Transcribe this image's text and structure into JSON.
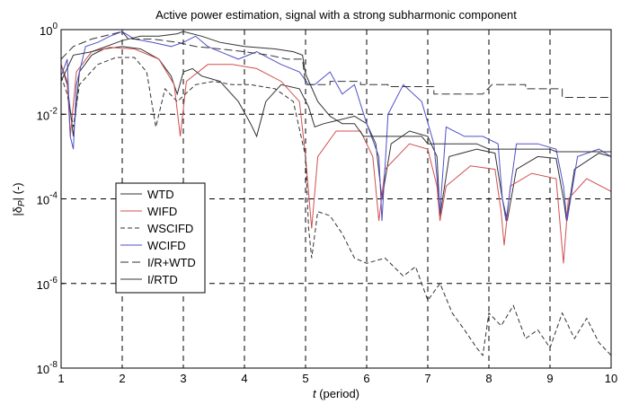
{
  "chart_data": {
    "type": "line",
    "title": "Active power estimation, signal with a strong subharmonic component",
    "xlabel_italic": "t",
    "xlabel_rest": " (period)",
    "ylabel_main": "|δ",
    "ylabel_sub": "P",
    "ylabel_rest": "| (-)",
    "xlim": [
      1,
      10
    ],
    "ylim": [
      1e-08,
      1
    ],
    "yscale": "log",
    "grid": true,
    "x_ticks": [
      "1",
      "2",
      "3",
      "4",
      "5",
      "6",
      "7",
      "8",
      "9",
      "10"
    ],
    "y_ticks": [
      {
        "base": "10",
        "exp": "0",
        "value": 1
      },
      {
        "base": "10",
        "exp": "-2",
        "value": 0.01
      },
      {
        "base": "10",
        "exp": "-4",
        "value": 0.0001
      },
      {
        "base": "10",
        "exp": "-6",
        "value": 1e-06
      },
      {
        "base": "10",
        "exp": "-8",
        "value": 1e-08
      }
    ],
    "legend_position": "left",
    "series": [
      {
        "name": "WTD",
        "color": "#333333",
        "dash": "none",
        "points": [
          [
            1.0,
            0.15
          ],
          [
            1.1,
            0.05
          ],
          [
            1.2,
            0.003
          ],
          [
            1.3,
            0.1
          ],
          [
            1.5,
            0.25
          ],
          [
            1.7,
            0.35
          ],
          [
            2.0,
            0.4
          ],
          [
            2.3,
            0.35
          ],
          [
            2.6,
            0.2
          ],
          [
            2.8,
            0.08
          ],
          [
            2.9,
            0.03
          ],
          [
            3.0,
            0.1
          ],
          [
            3.15,
            0.12
          ],
          [
            3.3,
            0.08
          ],
          [
            3.6,
            0.06
          ],
          [
            3.9,
            0.02
          ],
          [
            4.1,
            0.006
          ],
          [
            4.2,
            0.003
          ],
          [
            4.35,
            0.02
          ],
          [
            4.6,
            0.05
          ],
          [
            4.9,
            0.04
          ],
          [
            5.05,
            0.015
          ],
          [
            5.15,
            0.005
          ],
          [
            5.3,
            0.006
          ],
          [
            5.5,
            0.007
          ],
          [
            5.8,
            0.009
          ],
          [
            6.0,
            0.006
          ],
          [
            6.15,
            0.002
          ],
          [
            6.25,
            0.0001
          ],
          [
            6.4,
            0.002
          ],
          [
            6.7,
            0.004
          ],
          [
            7.0,
            0.003
          ],
          [
            7.15,
            0.001
          ],
          [
            7.2,
            4e-05
          ],
          [
            7.35,
            0.001
          ],
          [
            7.8,
            0.0015
          ],
          [
            8.1,
            0.0012
          ],
          [
            8.22,
            0.0001
          ],
          [
            8.3,
            3e-05
          ],
          [
            8.45,
            0.0005
          ],
          [
            8.8,
            0.001
          ],
          [
            9.1,
            0.0009
          ],
          [
            9.22,
            0.0001
          ],
          [
            9.27,
            3e-05
          ],
          [
            9.4,
            0.0005
          ],
          [
            9.8,
            0.0012
          ],
          [
            10.0,
            0.001
          ]
        ]
      },
      {
        "name": "WIFD",
        "color": "#d05050",
        "dash": "none",
        "points": [
          [
            1.0,
            0.15
          ],
          [
            1.1,
            0.06
          ],
          [
            1.15,
            0.003
          ],
          [
            1.25,
            0.1
          ],
          [
            1.5,
            0.3
          ],
          [
            1.8,
            0.38
          ],
          [
            2.2,
            0.35
          ],
          [
            2.6,
            0.2
          ],
          [
            2.85,
            0.05
          ],
          [
            2.95,
            0.003
          ],
          [
            3.05,
            0.06
          ],
          [
            3.4,
            0.15
          ],
          [
            3.8,
            0.15
          ],
          [
            4.2,
            0.12
          ],
          [
            4.6,
            0.06
          ],
          [
            4.9,
            0.02
          ],
          [
            5.0,
            0.001
          ],
          [
            5.1,
            2e-05
          ],
          [
            5.2,
            0.001
          ],
          [
            5.5,
            0.004
          ],
          [
            5.9,
            0.004
          ],
          [
            6.1,
            0.001
          ],
          [
            6.2,
            3e-05
          ],
          [
            6.3,
            0.0005
          ],
          [
            6.7,
            0.002
          ],
          [
            7.0,
            0.0015
          ],
          [
            7.15,
            0.0002
          ],
          [
            7.2,
            3e-05
          ],
          [
            7.3,
            0.0002
          ],
          [
            7.7,
            0.0006
          ],
          [
            8.1,
            0.0005
          ],
          [
            8.2,
            5e-05
          ],
          [
            8.25,
            8e-06
          ],
          [
            8.35,
            0.0002
          ],
          [
            8.7,
            0.0004
          ],
          [
            9.1,
            0.0003
          ],
          [
            9.22,
            3e-06
          ],
          [
            9.3,
            0.0001
          ],
          [
            9.6,
            0.0003
          ],
          [
            10.0,
            0.00015
          ]
        ]
      },
      {
        "name": "WSCIFD",
        "color": "#333333",
        "dash": "5,3",
        "points": [
          [
            1.0,
            0.08
          ],
          [
            1.1,
            0.03
          ],
          [
            1.2,
            0.005
          ],
          [
            1.3,
            0.05
          ],
          [
            1.6,
            0.15
          ],
          [
            1.9,
            0.22
          ],
          [
            2.2,
            0.22
          ],
          [
            2.4,
            0.1
          ],
          [
            2.55,
            0.005
          ],
          [
            2.6,
            0.01
          ],
          [
            2.7,
            0.04
          ],
          [
            2.9,
            0.02
          ],
          [
            3.2,
            0.05
          ],
          [
            3.5,
            0.06
          ],
          [
            3.8,
            0.05
          ],
          [
            4.1,
            0.05
          ],
          [
            4.5,
            0.04
          ],
          [
            4.8,
            0.02
          ],
          [
            5.0,
            0.001
          ],
          [
            5.05,
            2e-05
          ],
          [
            5.1,
            4e-06
          ],
          [
            5.2,
            5e-05
          ],
          [
            5.4,
            4e-05
          ],
          [
            5.6,
            1.5e-05
          ],
          [
            5.8,
            4e-06
          ],
          [
            6.0,
            3e-06
          ],
          [
            6.3,
            4e-06
          ],
          [
            6.6,
            1.5e-06
          ],
          [
            6.8,
            2.5e-06
          ],
          [
            7.0,
            4e-07
          ],
          [
            7.2,
            1e-06
          ],
          [
            7.4,
            2e-07
          ],
          [
            7.6,
            8e-08
          ],
          [
            7.8,
            3e-08
          ],
          [
            7.9,
            2e-08
          ],
          [
            8.0,
            2e-07
          ],
          [
            8.2,
            1e-07
          ],
          [
            8.4,
            3e-07
          ],
          [
            8.6,
            5e-08
          ],
          [
            8.8,
            8e-08
          ],
          [
            9.0,
            3e-08
          ],
          [
            9.2,
            2e-07
          ],
          [
            9.4,
            5e-08
          ],
          [
            9.6,
            1.5e-07
          ],
          [
            9.8,
            4e-08
          ],
          [
            10.0,
            2e-08
          ]
        ]
      },
      {
        "name": "WCIFD",
        "color": "#5050c8",
        "dash": "none",
        "points": [
          [
            1.0,
            0.08
          ],
          [
            1.1,
            0.2
          ],
          [
            1.15,
            0.003
          ],
          [
            1.2,
            0.0015
          ],
          [
            1.25,
            0.05
          ],
          [
            1.4,
            0.4
          ],
          [
            1.6,
            0.5
          ],
          [
            1.8,
            0.7
          ],
          [
            2.0,
            0.9
          ],
          [
            2.2,
            0.6
          ],
          [
            2.5,
            0.5
          ],
          [
            2.8,
            0.4
          ],
          [
            3.0,
            0.5
          ],
          [
            3.2,
            0.7
          ],
          [
            3.4,
            0.4
          ],
          [
            3.6,
            0.3
          ],
          [
            3.9,
            0.2
          ],
          [
            4.2,
            0.3
          ],
          [
            4.6,
            0.15
          ],
          [
            4.9,
            0.1
          ],
          [
            5.05,
            0.05
          ],
          [
            5.15,
            0.05
          ],
          [
            5.4,
            0.1
          ],
          [
            5.6,
            0.03
          ],
          [
            5.8,
            0.05
          ],
          [
            6.0,
            0.006
          ],
          [
            6.2,
            0.001
          ],
          [
            6.25,
            3e-05
          ],
          [
            6.35,
            0.01
          ],
          [
            6.6,
            0.05
          ],
          [
            6.9,
            0.02
          ],
          [
            7.1,
            0.002
          ],
          [
            7.2,
            5e-05
          ],
          [
            7.3,
            0.005
          ],
          [
            7.6,
            0.003
          ],
          [
            7.9,
            0.003
          ],
          [
            8.15,
            0.002
          ],
          [
            8.22,
            0.0001
          ],
          [
            8.28,
            3e-05
          ],
          [
            8.45,
            0.002
          ],
          [
            8.8,
            0.002
          ],
          [
            9.1,
            0.0015
          ],
          [
            9.22,
            0.0002
          ],
          [
            9.28,
            3e-05
          ],
          [
            9.45,
            0.001
          ],
          [
            9.8,
            0.0015
          ],
          [
            10.0,
            0.001
          ]
        ]
      },
      {
        "name": "I/R+WTD",
        "color": "#333333",
        "dash": "9,4",
        "points": [
          [
            1.0,
            0.2
          ],
          [
            1.2,
            0.4
          ],
          [
            1.5,
            0.6
          ],
          [
            2.0,
            0.9
          ],
          [
            2.1,
            0.6
          ],
          [
            2.3,
            0.6
          ],
          [
            2.5,
            0.6
          ],
          [
            2.9,
            0.5
          ],
          [
            3.2,
            0.4
          ],
          [
            3.6,
            0.35
          ],
          [
            4.0,
            0.3
          ],
          [
            4.4,
            0.25
          ],
          [
            4.7,
            0.2
          ],
          [
            4.95,
            0.2
          ],
          [
            5.0,
            0.05
          ],
          [
            5.4,
            0.05
          ],
          [
            5.4,
            0.06
          ],
          [
            5.9,
            0.06
          ],
          [
            5.9,
            0.05
          ],
          [
            6.35,
            0.05
          ],
          [
            6.35,
            0.045
          ],
          [
            7.1,
            0.045
          ],
          [
            7.1,
            0.03
          ],
          [
            7.9,
            0.03
          ],
          [
            8.05,
            0.05
          ],
          [
            8.6,
            0.05
          ],
          [
            8.6,
            0.04
          ],
          [
            9.2,
            0.04
          ],
          [
            9.2,
            0.025
          ],
          [
            10.0,
            0.025
          ]
        ]
      },
      {
        "name": "I/RTD",
        "color": "#333333",
        "dash": "none",
        "points": [
          [
            1.0,
            0.06
          ],
          [
            1.2,
            0.25
          ],
          [
            1.5,
            0.3
          ],
          [
            2.0,
            0.55
          ],
          [
            2.3,
            0.7
          ],
          [
            2.6,
            0.7
          ],
          [
            2.9,
            0.8
          ],
          [
            3.0,
            0.9
          ],
          [
            3.3,
            0.7
          ],
          [
            3.6,
            0.5
          ],
          [
            4.0,
            0.4
          ],
          [
            4.5,
            0.35
          ],
          [
            4.8,
            0.3
          ],
          [
            4.95,
            0.25
          ],
          [
            5.0,
            0.09
          ],
          [
            5.2,
            0.02
          ],
          [
            5.4,
            0.009
          ],
          [
            5.6,
            0.006
          ],
          [
            5.8,
            0.006
          ],
          [
            5.95,
            0.003
          ],
          [
            6.0,
            0.003
          ],
          [
            6.5,
            0.003
          ],
          [
            6.9,
            0.003
          ],
          [
            7.0,
            0.002
          ],
          [
            7.8,
            0.002
          ],
          [
            8.0,
            0.0015
          ],
          [
            8.6,
            0.0015
          ],
          [
            9.0,
            0.0015
          ],
          [
            9.1,
            0.0013
          ],
          [
            10.0,
            0.0013
          ]
        ]
      }
    ]
  }
}
